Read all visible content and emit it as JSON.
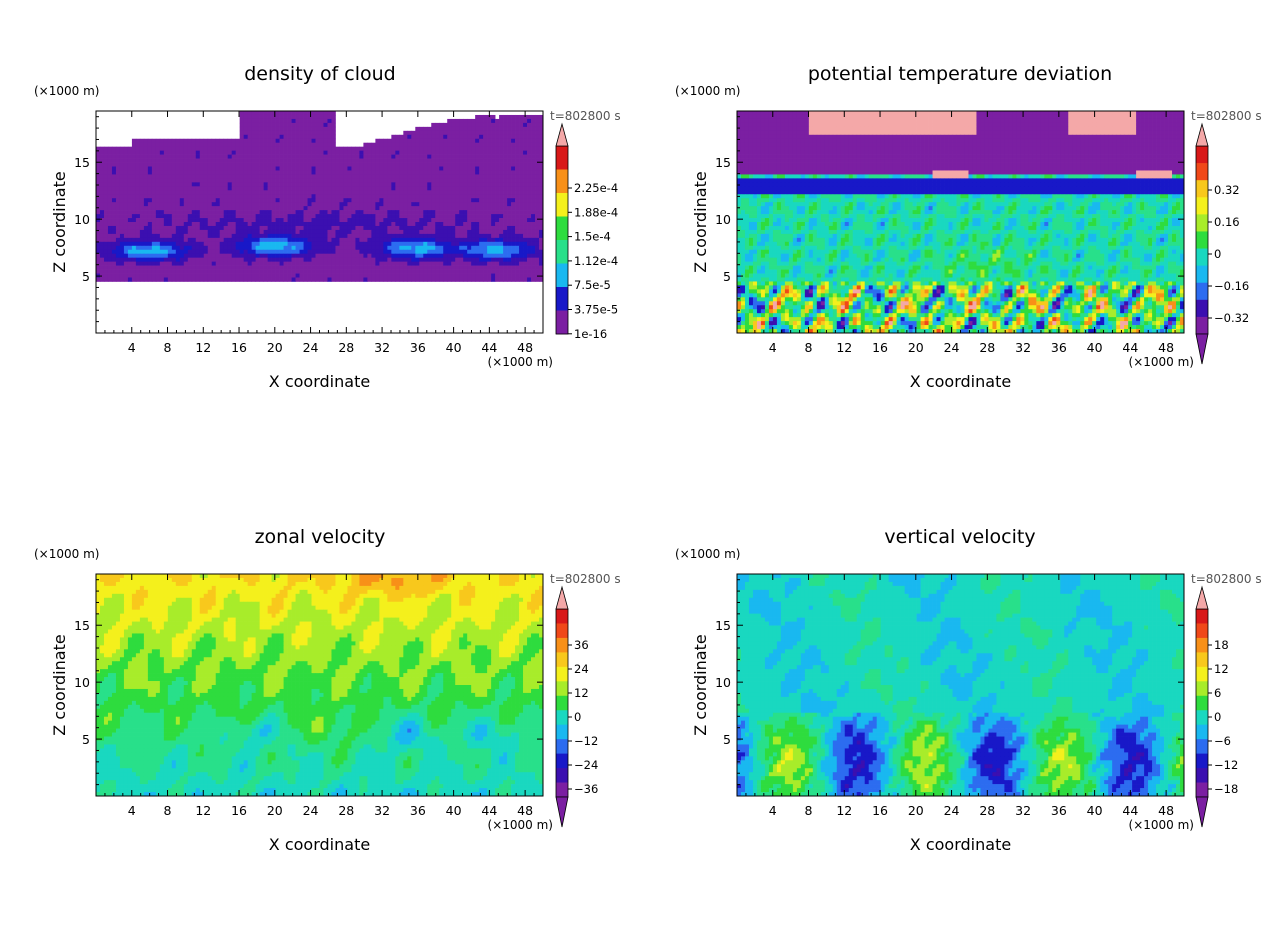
{
  "figure": {
    "background": "#ffffff"
  },
  "colors": {
    "palette": [
      "#7b1fa2",
      "#3b0fb0",
      "#1818c8",
      "#2c6cf0",
      "#19b8f0",
      "#19d8c0",
      "#28e08a",
      "#2edc3e",
      "#a8ec2a",
      "#f4f01c",
      "#f8c81c",
      "#f89018",
      "#f04818",
      "#d81818",
      "#f4a8a8"
    ],
    "frame": "#000000"
  },
  "chart_data": [
    {
      "id": "density-of-cloud",
      "type": "heatmap",
      "title": "density of cloud",
      "xlabel": "X coordinate",
      "ylabel": "Z coordinate",
      "x_unit": "(×1000 m)",
      "y_unit": "(×1000 m)",
      "time_label": "t=802800 s",
      "xlim": [
        0,
        50
      ],
      "ylim": [
        0,
        19.5
      ],
      "x_ticks": [
        4,
        8,
        12,
        16,
        20,
        24,
        28,
        32,
        36,
        40,
        44,
        48
      ],
      "y_ticks": [
        5,
        10,
        15
      ],
      "colorbar": {
        "labels": [
          "2.25e-4",
          "1.88e-4",
          "1.5e-4",
          "1.12e-4",
          "7.5e-5",
          "3.75e-5",
          "1e-16"
        ],
        "triangle_top": true,
        "triangle_bottom": false
      }
    },
    {
      "id": "potential-temperature-deviation",
      "type": "heatmap",
      "title": "potential temperature deviation",
      "xlabel": "X coordinate",
      "ylabel": "Z coordinate",
      "x_unit": "(×1000 m)",
      "y_unit": "(×1000 m)",
      "time_label": "t=802800 s",
      "xlim": [
        0,
        50
      ],
      "ylim": [
        0,
        19.5
      ],
      "x_ticks": [
        4,
        8,
        12,
        16,
        20,
        24,
        28,
        32,
        36,
        40,
        44,
        48
      ],
      "y_ticks": [
        5,
        10,
        15
      ],
      "colorbar": {
        "labels": [
          "0.32",
          "0.16",
          "0",
          "−0.16",
          "−0.32"
        ],
        "triangle_top": true,
        "triangle_bottom": true
      }
    },
    {
      "id": "zonal-velocity",
      "type": "heatmap",
      "title": "zonal velocity",
      "xlabel": "X coordinate",
      "ylabel": "Z coordinate",
      "x_unit": "(×1000 m)",
      "y_unit": "(×1000 m)",
      "time_label": "t=802800 s",
      "xlim": [
        0,
        50
      ],
      "ylim": [
        0,
        19.5
      ],
      "x_ticks": [
        4,
        8,
        12,
        16,
        20,
        24,
        28,
        32,
        36,
        40,
        44,
        48
      ],
      "y_ticks": [
        5,
        10,
        15
      ],
      "colorbar": {
        "labels": [
          "36",
          "24",
          "12",
          "0",
          "−12",
          "−24",
          "−36"
        ],
        "triangle_top": true,
        "triangle_bottom": true
      }
    },
    {
      "id": "vertical-velocity",
      "type": "heatmap",
      "title": "vertical velocity",
      "xlabel": "X coordinate",
      "ylabel": "Z coordinate",
      "x_unit": "(×1000 m)",
      "y_unit": "(×1000 m)",
      "time_label": "t=802800 s",
      "xlim": [
        0,
        50
      ],
      "ylim": [
        0,
        19.5
      ],
      "x_ticks": [
        4,
        8,
        12,
        16,
        20,
        24,
        28,
        32,
        36,
        40,
        44,
        48
      ],
      "y_ticks": [
        5,
        10,
        15
      ],
      "colorbar": {
        "labels": [
          "18",
          "12",
          "6",
          "0",
          "−6",
          "−12",
          "−18"
        ],
        "triangle_top": true,
        "triangle_bottom": true
      }
    }
  ]
}
